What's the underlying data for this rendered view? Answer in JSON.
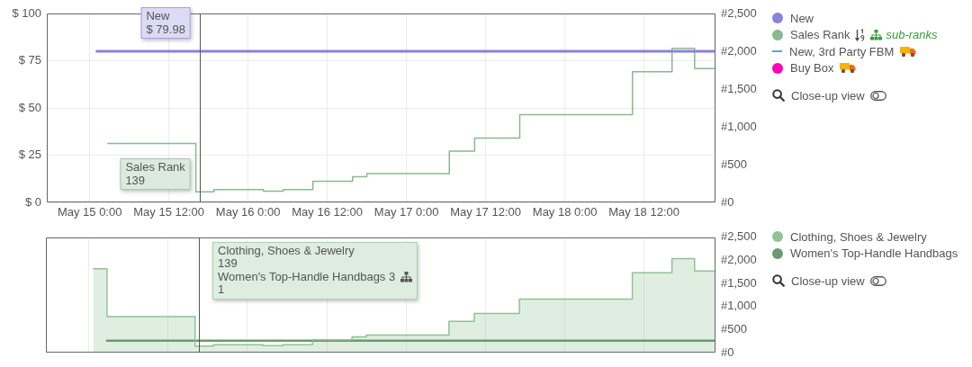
{
  "chart_data": [
    {
      "type": "step",
      "series": [
        {
          "name": "New",
          "color": "#8a82dc",
          "x": [
            "--05-15T01:05",
            "--05-18T22:50"
          ],
          "values": [
            79.98,
            79.98
          ]
        },
        {
          "name": "Sales Rank",
          "axis": "y2",
          "color": "#8ab890",
          "x": [
            "--05-15T02:45",
            "--05-15T16:05",
            "--05-15T18:50",
            "--05-16T02:20",
            "--05-16T05:20",
            "--05-16T09:50",
            "--05-16T15:50",
            "--05-16T18:00",
            "--05-17T06:30",
            "--05-17T10:20",
            "--05-17T17:10",
            "--05-18T10:15",
            "--05-18T16:15",
            "--05-18T19:40",
            "--05-18T22:50"
          ],
          "values": [
            780,
            139,
            170,
            150,
            170,
            280,
            340,
            380,
            680,
            850,
            1160,
            1730,
            2040,
            1770,
            1770
          ]
        },
        {
          "name": "New, 3rd Party FBM",
          "type": "line",
          "color": "#5fa3c9"
        },
        {
          "name": "Buy Box",
          "type": "scatter",
          "color": "#ff00b4"
        }
      ],
      "xlim": [
        "--05-14T17:30",
        "--05-18T22:50"
      ],
      "xticks": [
        {
          "value": "--05-15T00:00",
          "label": "May 15 0:00"
        },
        {
          "value": "--05-15T12:00",
          "label": "May 15 12:00"
        },
        {
          "value": "--05-16T00:00",
          "label": "May 16 0:00"
        },
        {
          "value": "--05-16T12:00",
          "label": "May 16 12:00"
        },
        {
          "value": "--05-17T00:00",
          "label": "May 17 0:00"
        },
        {
          "value": "--05-17T12:00",
          "label": "May 17 12:00"
        },
        {
          "value": "--05-18T00:00",
          "label": "May 18 0:00"
        },
        {
          "value": "--05-18T12:00",
          "label": "May 18 12:00"
        }
      ],
      "ylim": [
        0,
        100
      ],
      "yticks": [
        {
          "value": 0,
          "label": "$ 0"
        },
        {
          "value": 25,
          "label": "$ 25"
        },
        {
          "value": 50,
          "label": "$ 50"
        },
        {
          "value": 75,
          "label": "$ 75"
        },
        {
          "value": 100,
          "label": "$ 100"
        }
      ],
      "y2lim": [
        0,
        2500
      ],
      "y2ticks": [
        {
          "value": 0,
          "label": "#0"
        },
        {
          "value": 500,
          "label": "#500"
        },
        {
          "value": 1000,
          "label": "#1,000"
        },
        {
          "value": 1500,
          "label": "#1,500"
        },
        {
          "value": 2000,
          "label": "#2,000"
        },
        {
          "value": 2500,
          "label": "#2,500"
        }
      ],
      "grid": true,
      "legend": "right",
      "ref_lines": [
        {
          "axis": "x",
          "value": "--05-15T16:40",
          "color": "#555555"
        }
      ],
      "annotations": [
        {
          "text": "New\n$ 79.98",
          "x": "--05-15T16:40",
          "y": 79.98
        },
        {
          "text": "Sales Rank\n139",
          "x": "--05-15T16:40"
        },
        "sub-ranks",
        "Close-up view"
      ]
    },
    {
      "type": "step",
      "series": [
        {
          "name": "Clothing, Shoes & Jewelry",
          "type": "area",
          "color": "#8fc295",
          "x": [
            "--05-15T00:40",
            "--05-15T02:45",
            "--05-15T02:45",
            "--05-15T16:05",
            "--05-15T16:05",
            "--05-15T18:50",
            "--05-15T18:50",
            "--05-16T02:20",
            "--05-16T02:20",
            "--05-16T05:20",
            "--05-16T05:20",
            "--05-16T09:50",
            "--05-16T09:50",
            "--05-16T15:50",
            "--05-16T15:50",
            "--05-16T18:00",
            "--05-16T18:00",
            "--05-17T06:30",
            "--05-17T06:30",
            "--05-17T10:20",
            "--05-17T10:20",
            "--05-17T17:10",
            "--05-17T17:10",
            "--05-18T10:15",
            "--05-18T10:15",
            "--05-18T16:15",
            "--05-18T16:15",
            "--05-18T19:40",
            "--05-18T19:40",
            "--05-18T22:50"
          ],
          "values": [
            1820,
            1820,
            780,
            780,
            139,
            139,
            170,
            170,
            150,
            150,
            170,
            170,
            280,
            280,
            340,
            340,
            380,
            380,
            680,
            680,
            850,
            850,
            1160,
            1160,
            1730,
            1730,
            2040,
            2040,
            1770,
            1770
          ]
        },
        {
          "name": "Women's Top-Handle Handbags",
          "color": "#6a9a70",
          "x": [
            "--05-15T02:45",
            "--05-18T22:50"
          ],
          "values": [
            260,
            260
          ]
        }
      ],
      "xlim": [
        "--05-14T17:30",
        "--05-18T22:50"
      ],
      "xticks": [
        {
          "value": "--05-15T00:00",
          "label": null
        },
        {
          "value": "--05-15T12:00",
          "label": null
        },
        {
          "value": "--05-16T00:00",
          "label": null
        },
        {
          "value": "--05-16T12:00",
          "label": null
        },
        {
          "value": "--05-17T00:00",
          "label": null
        },
        {
          "value": "--05-17T12:00",
          "label": null
        },
        {
          "value": "--05-18T00:00",
          "label": null
        },
        {
          "value": "--05-18T12:00",
          "label": null
        }
      ],
      "ylim": [
        0,
        2500
      ],
      "yticks": [
        {
          "value": 0,
          "label": "#0"
        },
        {
          "value": 500,
          "label": "#500"
        },
        {
          "value": 1000,
          "label": "#1,000"
        },
        {
          "value": 1500,
          "label": "#1,500"
        },
        {
          "value": 2000,
          "label": "#2,000"
        },
        {
          "value": 2500,
          "label": "#2,500"
        }
      ],
      "grid": "x",
      "legend": "right",
      "tick_labels": "y",
      "ref_lines": [
        {
          "axis": "x",
          "value": "--05-15T16:40",
          "color": "#555555"
        }
      ],
      "annotations": [
        {
          "text": "Clothing, Shoes & Jewelry\n139\nWomen's Top-Handle Handbags 3\n1",
          "x": "--05-15T16:40"
        },
        "Close-up view"
      ]
    }
  ]
}
